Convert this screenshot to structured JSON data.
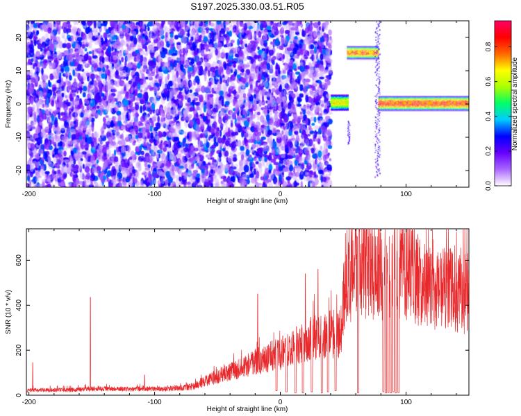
{
  "figure": {
    "title": "S197.2025.330.03.51.R05"
  },
  "chart_data": [
    {
      "type": "heatmap",
      "xlabel": "Height of straight line (km)",
      "ylabel": "Frequency (Hz)",
      "xlim": [
        -202,
        150
      ],
      "ylim": [
        -25,
        25
      ],
      "xticks": [
        -200,
        -100,
        0,
        100
      ],
      "yticks": [
        -20,
        -10,
        0,
        10,
        20
      ],
      "grid": false,
      "colorbar": {
        "label": "Normalized spectral amplitude",
        "range": [
          0,
          0.95
        ],
        "ticks": [
          0.0,
          0.2,
          0.4,
          0.6,
          0.8
        ],
        "colors": [
          "#ffffff",
          "#aa66ff",
          "#6600ff",
          "#0000ff",
          "#00ccff",
          "#00ff66",
          "#aaff00",
          "#ffff00",
          "#ff6600",
          "#ff0000",
          "#ff0066"
        ]
      },
      "features": [
        {
          "x_range": [
            -202,
            40
          ],
          "y_range": [
            -25,
            25
          ],
          "amplitude_range": [
            0.0,
            0.35
          ],
          "kind": "noise"
        },
        {
          "x_range": [
            40,
            54
          ],
          "y_range": [
            -1.5,
            2.5
          ],
          "amplitude": 0.75,
          "kind": "band"
        },
        {
          "x_range": [
            53,
            55
          ],
          "y_range": [
            -12,
            -5
          ],
          "amplitude": 0.3,
          "kind": "streak"
        },
        {
          "x_range": [
            53,
            78
          ],
          "y_range": [
            14,
            17
          ],
          "amplitude": 0.9,
          "kind": "band"
        },
        {
          "x_range": [
            75,
            79
          ],
          "y_range": [
            -22,
            25
          ],
          "amplitude": 0.3,
          "kind": "streak"
        },
        {
          "x_range": [
            78,
            150
          ],
          "y_range": [
            -1.5,
            2
          ],
          "amplitude": 0.95,
          "kind": "band"
        }
      ]
    },
    {
      "type": "line",
      "xlabel": "Height of straight line (km)",
      "ylabel": "SNR (10 * v/v)",
      "xlim": [
        -202,
        150
      ],
      "ylim": [
        0,
        740
      ],
      "xticks": [
        -200,
        -100,
        0,
        100
      ],
      "yticks": [
        0,
        200,
        400,
        600
      ],
      "grid": false,
      "color": "#e8282b",
      "profile": [
        [
          -202,
          20
        ],
        [
          -197,
          25
        ],
        [
          -190,
          25
        ],
        [
          -170,
          25
        ],
        [
          -150,
          30
        ],
        [
          -120,
          30
        ],
        [
          -90,
          30
        ],
        [
          -70,
          40
        ],
        [
          -60,
          70
        ],
        [
          -50,
          90
        ],
        [
          -40,
          110
        ],
        [
          -30,
          130
        ],
        [
          -20,
          160
        ],
        [
          -10,
          180
        ],
        [
          0,
          200
        ],
        [
          10,
          230
        ],
        [
          20,
          260
        ],
        [
          30,
          280
        ],
        [
          40,
          300
        ],
        [
          48,
          290
        ],
        [
          52,
          570
        ],
        [
          60,
          600
        ],
        [
          70,
          610
        ],
        [
          80,
          600
        ],
        [
          90,
          610
        ],
        [
          100,
          600
        ],
        [
          110,
          560
        ],
        [
          120,
          520
        ],
        [
          130,
          510
        ],
        [
          140,
          500
        ],
        [
          150,
          490
        ]
      ],
      "spikes": [
        {
          "x": -197,
          "y": 145
        },
        {
          "x": -151,
          "y": 435
        },
        {
          "x": -108,
          "y": 90
        },
        {
          "x": -18,
          "y": 450
        },
        {
          "x": 20,
          "y": 540
        },
        {
          "x": 30,
          "y": 560
        },
        {
          "x": 105,
          "y": 740
        }
      ],
      "dropouts": [
        {
          "x": -3,
          "y": 20
        },
        {
          "x": 5,
          "y": 15
        },
        {
          "x": 12,
          "y": 10
        },
        {
          "x": 18,
          "y": 10
        },
        {
          "x": 25,
          "y": 15
        },
        {
          "x": 33,
          "y": 10
        },
        {
          "x": 38,
          "y": 15
        },
        {
          "x": 44,
          "y": 20
        },
        {
          "x": 62,
          "y": 10
        },
        {
          "x": 82,
          "y": 15
        },
        {
          "x": 84,
          "y": 10
        },
        {
          "x": 86,
          "y": 12
        },
        {
          "x": 88,
          "y": 10
        },
        {
          "x": 90,
          "y": 15
        },
        {
          "x": 92,
          "y": 10
        },
        {
          "x": 94,
          "y": 12
        }
      ]
    }
  ]
}
